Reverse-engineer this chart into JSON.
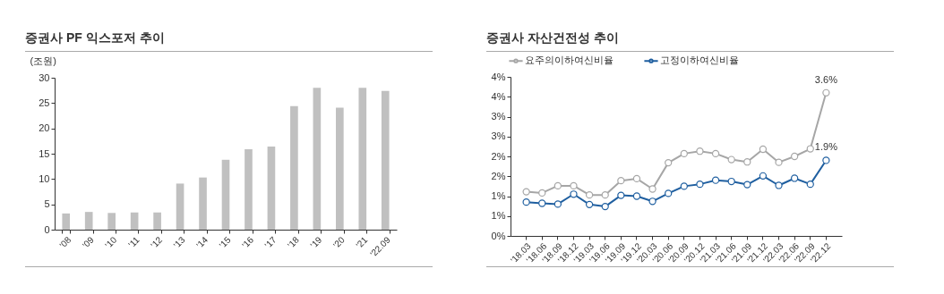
{
  "chart_data": [
    {
      "type": "bar",
      "title": "증권사 PF 익스포저 추이",
      "ylabel": "(조원)",
      "categories": [
        "'08",
        "'09",
        "'10",
        "'11",
        "'12",
        "'13",
        "'14",
        "'15",
        "'16",
        "'17",
        "'18",
        "'19",
        "'20",
        "'21",
        "'22.09"
      ],
      "values": [
        3.2,
        3.5,
        3.3,
        3.4,
        3.4,
        9.1,
        10.3,
        13.8,
        15.9,
        16.4,
        24.4,
        28.0,
        24.1,
        28.0,
        27.4
      ],
      "color": "#c0c0c0",
      "ylim": [
        0,
        30
      ],
      "yticks": [
        0,
        5,
        10,
        15,
        20,
        25,
        30
      ],
      "grid": false
    },
    {
      "type": "line",
      "title": "증권사 자산건전성 추이",
      "categories": [
        "'18.03",
        "'18.06",
        "'18.09",
        "'18.12",
        "'19.03",
        "'19.06",
        "'19.09",
        "'19.12",
        "'20.03",
        "'20.06",
        "'20.09",
        "'20.12",
        "'21.03",
        "'21.06",
        "'21.09",
        "'21.12",
        "'22.03",
        "'22.06",
        "'22.09",
        "'22.12"
      ],
      "series": [
        {
          "name": "요주의이하여신비율",
          "color": "#a6a6a6",
          "values": [
            1.11,
            1.08,
            1.26,
            1.26,
            1.03,
            1.03,
            1.39,
            1.44,
            1.18,
            1.84,
            2.07,
            2.13,
            2.07,
            1.92,
            1.86,
            2.18,
            1.85,
            2.0,
            2.19,
            3.6
          ],
          "value_labels": [
            null,
            null,
            null,
            null,
            null,
            null,
            null,
            null,
            null,
            null,
            null,
            null,
            null,
            null,
            null,
            null,
            null,
            null,
            null,
            "3.6%"
          ]
        },
        {
          "name": "고정이하여신비율",
          "color": "#1f5fa0",
          "values": [
            0.85,
            0.82,
            0.8,
            1.05,
            0.79,
            0.74,
            1.02,
            1.0,
            0.87,
            1.07,
            1.25,
            1.3,
            1.4,
            1.37,
            1.29,
            1.51,
            1.27,
            1.45,
            1.3,
            1.9
          ],
          "value_labels": [
            null,
            null,
            null,
            null,
            null,
            null,
            null,
            null,
            null,
            null,
            null,
            null,
            null,
            null,
            null,
            null,
            null,
            null,
            null,
            "1.9%"
          ]
        }
      ],
      "ylim": [
        0,
        4
      ],
      "yticks": [
        {
          "value": 0,
          "label": "0%"
        },
        {
          "value": 0.5,
          "label": "1%"
        },
        {
          "value": 1,
          "label": "1%"
        },
        {
          "value": 1.5,
          "label": "2%"
        },
        {
          "value": 2,
          "label": "2%"
        },
        {
          "value": 2.5,
          "label": "3%"
        },
        {
          "value": 3,
          "label": "3%"
        },
        {
          "value": 3.5,
          "label": "4%"
        },
        {
          "value": 4,
          "label": "4%"
        }
      ],
      "grid": false,
      "legend": "top",
      "marker": "circle",
      "line_style": "solid"
    }
  ]
}
